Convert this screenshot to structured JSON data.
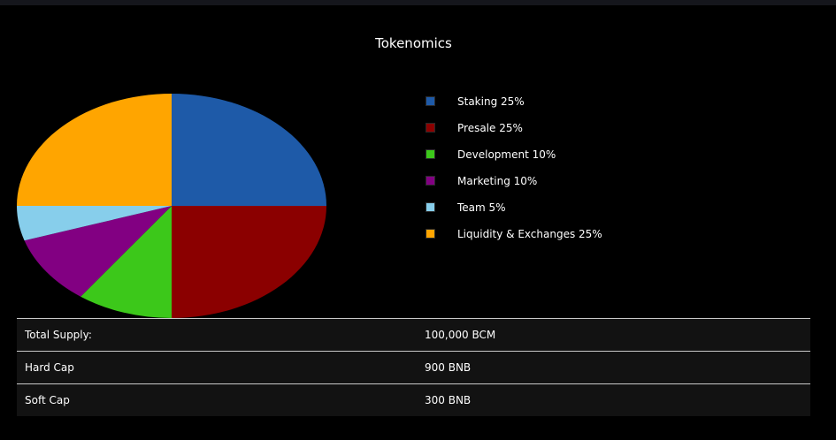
{
  "chart_data": {
    "type": "pie",
    "title": "Tokenomics",
    "slices": [
      {
        "label": "Staking 25%",
        "value": 25,
        "color": "#1e5aa8"
      },
      {
        "label": "Presale 25%",
        "value": 25,
        "color": "#8b0000"
      },
      {
        "label": "Development 10%",
        "value": 10,
        "color": "#3cc81a"
      },
      {
        "label": "Marketing 10%",
        "value": 10,
        "color": "#820082"
      },
      {
        "label": "Team 5%",
        "value": 5,
        "color": "#87ceeb"
      },
      {
        "label": "Liquidity & Exchanges 25%",
        "value": 25,
        "color": "#ffa500"
      }
    ],
    "legend": "right"
  },
  "info_table": [
    {
      "label": "Total Supply:",
      "value": "100,000 BCM"
    },
    {
      "label": "Hard Cap",
      "value": "900 BNB"
    },
    {
      "label": "Soft Cap",
      "value": "300 BNB"
    }
  ]
}
